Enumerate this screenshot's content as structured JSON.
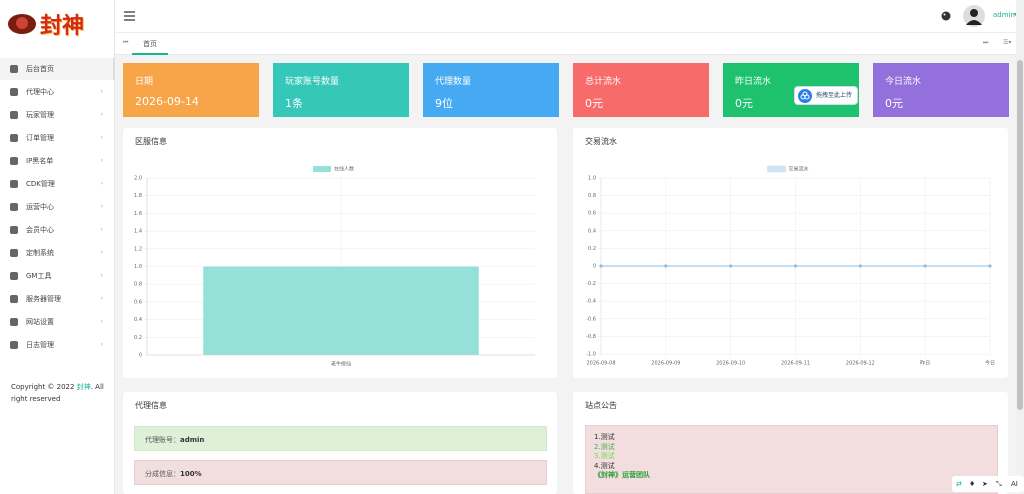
{
  "sidebar": {
    "logo": "封神",
    "menu": [
      "后台首页",
      "代理中心",
      "玩家管理",
      "订单管理",
      "IP黑名单",
      "CDK管理",
      "运营中心",
      "会员中心",
      "定制系统",
      "GM工具",
      "服务器管理",
      "网站设置",
      "日志管理"
    ],
    "footer": {
      "prefix": "Copyright © 2022 ",
      "brand": "封神",
      "suffix": ". All right reserved"
    }
  },
  "header": {
    "user": "admin"
  },
  "tabs": {
    "active": "首页"
  },
  "cards": [
    {
      "label": "日期",
      "value": "2026-09-14",
      "color": "#f8a54a"
    },
    {
      "label": "玩家账号数量",
      "value": "1条",
      "color": "#35c7b8"
    },
    {
      "label": "代理数量",
      "value": "9位",
      "color": "#46aaf2"
    },
    {
      "label": "总计流水",
      "value": "0元",
      "color": "#f76b6b"
    },
    {
      "label": "昨日流水",
      "value": "0元",
      "color": "#1ec16e"
    },
    {
      "label": "今日流水",
      "value": "0元",
      "color": "#9370db"
    }
  ],
  "overlay": {
    "text": "拖拽至此上传"
  },
  "charts": [
    {
      "title": "区服信息",
      "type": "bar",
      "legend": "在线人数",
      "color": "#95e1d8",
      "categories": [
        "老牛修仙"
      ],
      "values": [
        1
      ],
      "ylim": [
        0,
        2
      ],
      "yticks": [
        0,
        {
          "value": 0.2,
          "label": "0.2"
        },
        {
          "value": 0.4,
          "label": "0.4"
        },
        {
          "value": 0.6,
          "label": "0.6"
        },
        {
          "value": 0.8,
          "label": "0.8"
        },
        {
          "value": 1,
          "label": "1.0"
        },
        {
          "value": 1.2,
          "label": "1.2"
        },
        {
          "value": 1.4,
          "label": "1.4"
        },
        {
          "value": 1.6,
          "label": "1.6"
        },
        {
          "value": 1.8,
          "label": "1.8"
        },
        {
          "value": 2,
          "label": "2.0"
        }
      ]
    },
    {
      "title": "交易流水",
      "type": "line",
      "legend": "交易流水",
      "color": "#8fbde0",
      "categories": [
        "2026-09-08",
        "2026-09-09",
        "2026-09-10",
        "2026-09-11",
        "2026-09-12",
        "昨日",
        "今日"
      ],
      "values": [
        0,
        0,
        0,
        0,
        0,
        0,
        0
      ],
      "ylim": [
        -1,
        1
      ],
      "yticks": [
        {
          "value": -1,
          "label": "-1.0"
        },
        -0.8,
        -0.6,
        -0.4,
        -0.2,
        0,
        0.2,
        0.4,
        0.6,
        0.8,
        {
          "value": 1,
          "label": "1.0"
        }
      ]
    }
  ],
  "agent": {
    "title": "代理信息",
    "rows": [
      {
        "label": "代理账号：",
        "value": "admin"
      },
      {
        "label": "分成信息：",
        "value": "100%"
      }
    ]
  },
  "notice": {
    "title": "站点公告",
    "lines": [
      "1.测试",
      "2.测试",
      "3.测试",
      "4.测试"
    ],
    "signature": "《封神》运营团队"
  },
  "toolbar": {
    "ai": "AI"
  }
}
